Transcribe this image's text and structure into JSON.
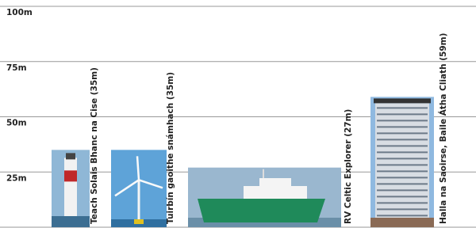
{
  "chart_data": {
    "type": "picture-bar",
    "categories": [
      "Teach Solais Bhanc na Cise (35m)",
      "Tuirbín gaoithe snámhach (35m)",
      "RV Celtic Explorer (27m)",
      "Halla na Saoirse, Baile Átha Cliath (59m)"
    ],
    "values": [
      35,
      35,
      27,
      59
    ],
    "colors": [
      "#8fb7d6",
      "#5ea3d8",
      "#9ab7cf",
      "#8fb9e0"
    ],
    "ylim": [
      0,
      100
    ],
    "yticks": [
      {
        "value": 25,
        "label": "25m"
      },
      {
        "value": 50,
        "label": "50m"
      },
      {
        "value": 75,
        "label": "75m"
      },
      {
        "value": 100,
        "label": "100m"
      }
    ],
    "grid": true
  }
}
